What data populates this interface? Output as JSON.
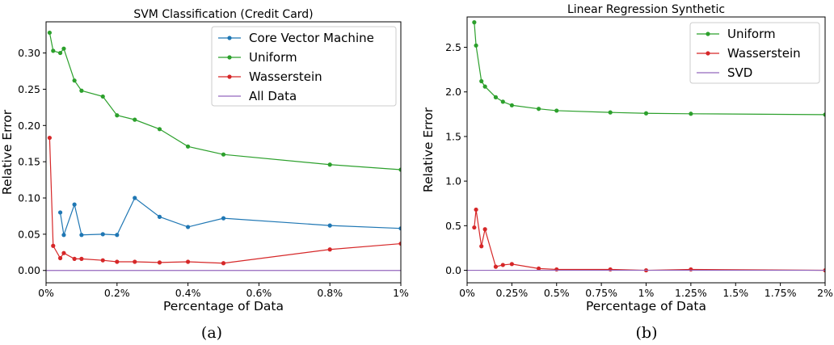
{
  "chart_data": [
    {
      "type": "line",
      "title": "SVM Classification (Credit Card)",
      "xlabel": "Percentage of Data",
      "ylabel": "Relative Error",
      "xlim": [
        0,
        1
      ],
      "ylim": [
        -0.017,
        0.343
      ],
      "xticks": [
        0,
        0.2,
        0.4,
        0.6,
        0.8,
        1.0
      ],
      "xtick_labels": [
        "0%",
        "0.2%",
        "0.4%",
        "0.6%",
        "0.8%",
        "1%"
      ],
      "yticks": [
        0.0,
        0.05,
        0.1,
        0.15,
        0.2,
        0.25,
        0.3
      ],
      "ytick_labels": [
        "0.00",
        "0.05",
        "0.10",
        "0.15",
        "0.20",
        "0.25",
        "0.30"
      ],
      "legend_position": "top-right",
      "caption": "(a)",
      "series": [
        {
          "name": "Core Vector Machine",
          "color": "#1f77b4",
          "markers": true,
          "x": [
            0.04,
            0.05,
            0.08,
            0.1,
            0.16,
            0.2,
            0.25,
            0.32,
            0.4,
            0.5,
            0.8,
            1.0
          ],
          "y": [
            0.08,
            0.049,
            0.091,
            0.049,
            0.05,
            0.049,
            0.1,
            0.074,
            0.06,
            0.072,
            0.062,
            0.058
          ]
        },
        {
          "name": "Uniform",
          "color": "#2ca02c",
          "markers": true,
          "x": [
            0.01,
            0.02,
            0.04,
            0.05,
            0.08,
            0.1,
            0.16,
            0.2,
            0.25,
            0.32,
            0.4,
            0.5,
            0.8,
            1.0
          ],
          "y": [
            0.328,
            0.303,
            0.3,
            0.306,
            0.262,
            0.248,
            0.24,
            0.214,
            0.208,
            0.195,
            0.171,
            0.16,
            0.146,
            0.139
          ]
        },
        {
          "name": "Wasserstein",
          "color": "#d62728",
          "markers": true,
          "x": [
            0.01,
            0.02,
            0.04,
            0.05,
            0.08,
            0.1,
            0.16,
            0.2,
            0.25,
            0.32,
            0.4,
            0.5,
            0.8,
            1.0
          ],
          "y": [
            0.183,
            0.034,
            0.017,
            0.024,
            0.016,
            0.016,
            0.014,
            0.012,
            0.012,
            0.011,
            0.012,
            0.01,
            0.029,
            0.037
          ]
        },
        {
          "name": "All Data",
          "color": "#9467bd",
          "markers": false,
          "x": [
            0,
            1.0
          ],
          "y": [
            0.0,
            0.0
          ]
        }
      ]
    },
    {
      "type": "line",
      "title": "Linear Regression Synthetic",
      "xlabel": "Percentage of Data",
      "ylabel": "Relative Error",
      "xlim": [
        0,
        2.0
      ],
      "ylim": [
        -0.14,
        2.84
      ],
      "xticks": [
        0,
        0.25,
        0.5,
        0.75,
        1.0,
        1.25,
        1.5,
        1.75,
        2.0
      ],
      "xtick_labels": [
        "0%",
        "0.25%",
        "0.5%",
        "0.75%",
        "1%",
        "1.25%",
        "1.5%",
        "1.75%",
        "2%"
      ],
      "yticks": [
        0.0,
        0.5,
        1.0,
        1.5,
        2.0,
        2.5
      ],
      "ytick_labels": [
        "0.0",
        "0.5",
        "1.0",
        "1.5",
        "2.0",
        "2.5"
      ],
      "legend_position": "top-right",
      "caption": "(b)",
      "series": [
        {
          "name": "Uniform",
          "color": "#2ca02c",
          "markers": true,
          "x": [
            0.04,
            0.05,
            0.08,
            0.1,
            0.16,
            0.2,
            0.25,
            0.4,
            0.5,
            0.8,
            1.0,
            1.25,
            2.0
          ],
          "y": [
            2.78,
            2.52,
            2.12,
            2.06,
            1.94,
            1.89,
            1.85,
            1.81,
            1.79,
            1.77,
            1.76,
            1.755,
            1.745
          ]
        },
        {
          "name": "Wasserstein",
          "color": "#d62728",
          "markers": true,
          "x": [
            0.04,
            0.05,
            0.08,
            0.1,
            0.16,
            0.2,
            0.25,
            0.4,
            0.5,
            0.8,
            1.0,
            1.25,
            2.0
          ],
          "y": [
            0.48,
            0.68,
            0.27,
            0.46,
            0.04,
            0.06,
            0.07,
            0.02,
            0.01,
            0.01,
            0.0,
            0.01,
            0.0
          ]
        },
        {
          "name": "SVD",
          "color": "#9467bd",
          "markers": false,
          "x": [
            0.0,
            2.0
          ],
          "y": [
            0.0,
            0.0
          ]
        }
      ]
    }
  ]
}
